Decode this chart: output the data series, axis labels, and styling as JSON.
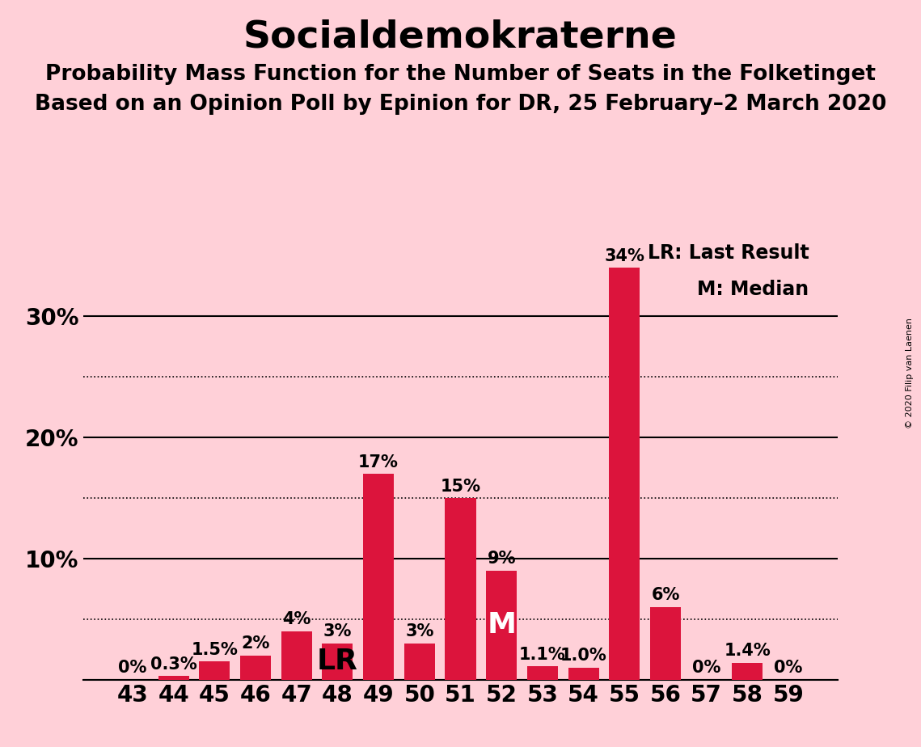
{
  "title": "Socialdemokraterne",
  "subtitle1": "Probability Mass Function for the Number of Seats in the Folketinget",
  "subtitle2": "Based on an Opinion Poll by Epinion for DR, 25 February–2 March 2020",
  "copyright": "© 2020 Filip van Laenen",
  "seats": [
    43,
    44,
    45,
    46,
    47,
    48,
    49,
    50,
    51,
    52,
    53,
    54,
    55,
    56,
    57,
    58,
    59
  ],
  "probabilities": [
    0.0,
    0.3,
    1.5,
    2.0,
    4.0,
    3.0,
    17.0,
    3.0,
    15.0,
    9.0,
    1.1,
    1.0,
    34.0,
    6.0,
    0.0,
    1.4,
    0.0
  ],
  "prob_labels": [
    "0%",
    "0.3%",
    "1.5%",
    "2%",
    "4%",
    "3%",
    "17%",
    "3%",
    "15%",
    "9%",
    "1.1%",
    "1.0%",
    "34%",
    "6%",
    "0%",
    "1.4%",
    "0%"
  ],
  "bar_color": "#DC143C",
  "background_color": "#FFD0D8",
  "lr_seat": 48,
  "median_seat": 52,
  "solid_yticks": [
    0,
    10,
    20,
    30
  ],
  "dotted_yticks": [
    5,
    15,
    25
  ],
  "ylim": [
    0,
    37
  ],
  "legend_text_lr": "LR: Last Result",
  "legend_text_m": "M: Median",
  "tick_label_fontsize": 20,
  "bar_label_fontsize": 15,
  "title_fontsize": 34,
  "subtitle_fontsize": 19,
  "lr_m_fontsize": 26
}
